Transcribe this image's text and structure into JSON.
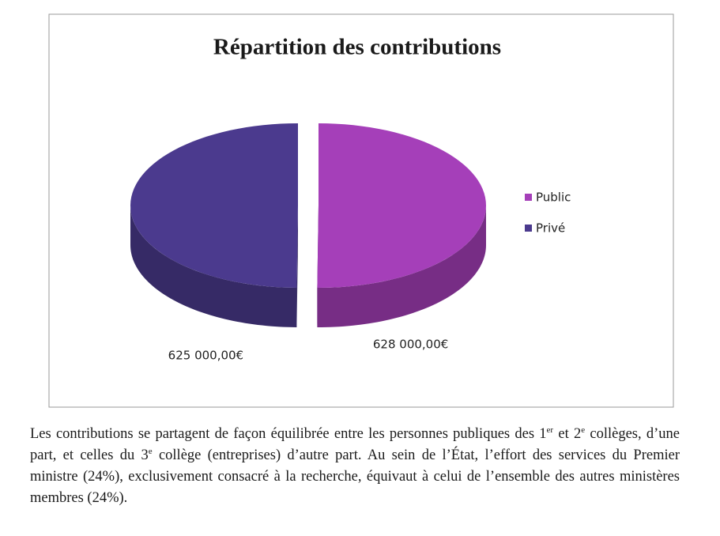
{
  "chart_data": {
    "type": "pie",
    "title": "Répartition des contributions",
    "categories": [
      "Public",
      "Privé"
    ],
    "values": [
      628000,
      625000
    ],
    "value_labels": [
      "628 000,00€",
      "625 000,00€"
    ],
    "colors": [
      "#a53fb9",
      "#4b3a8e"
    ],
    "legend": "right"
  },
  "document": {
    "paragraph": [
      {
        "text": "Les contributions se partagent de façon équilibrée entre les personnes publiques des 1"
      },
      {
        "sup": "er"
      },
      {
        "text": " et 2"
      },
      {
        "sup": "e"
      },
      {
        "text": " collèges, d’une part, et celles du 3"
      },
      {
        "sup": "e"
      },
      {
        "text": " collège (entreprises) d’autre part. Au sein de l’État, l’effort des services du Premier ministre (24%), exclusivement consacré à la recherche, équivaut à celui de l’ensemble des autres ministères membres (24%)."
      }
    ]
  }
}
